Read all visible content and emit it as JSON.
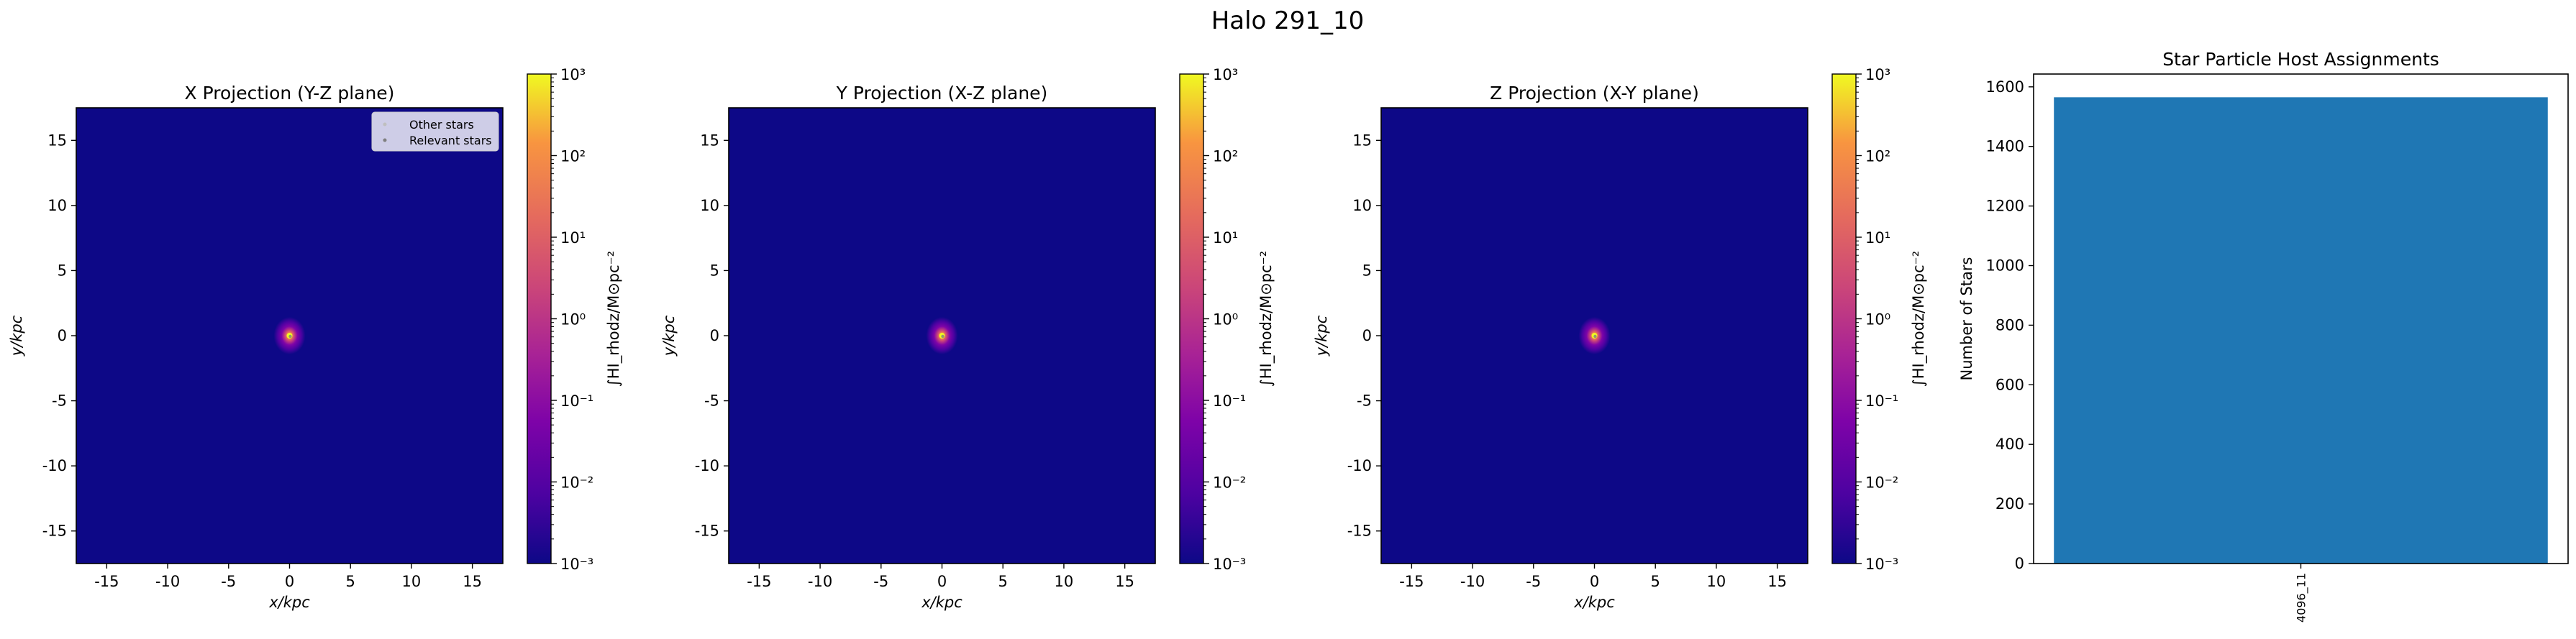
{
  "figure": {
    "suptitle": "Halo 291_10"
  },
  "chart_data": [
    {
      "type": "heatmap",
      "title": "X Projection (Y-Z plane)",
      "xlabel": "x/kpc",
      "ylabel": "y/kpc",
      "xlim": [
        -17.5,
        17.5
      ],
      "ylim": [
        -17.5,
        17.5
      ],
      "xticks": [
        -15,
        -10,
        -5,
        0,
        5,
        10,
        15
      ],
      "yticks": [
        -15,
        -10,
        -5,
        0,
        5,
        10,
        15
      ],
      "colormap": "plasma",
      "colorscale": "log",
      "colorbar": {
        "label": "∫HI_rhodz/M⊙pc⁻²",
        "ticks": [
          {
            "value": 0.001,
            "label": "10⁻³"
          },
          {
            "value": 0.01,
            "label": "10⁻²"
          },
          {
            "value": 0.1,
            "label": "10⁻¹"
          },
          {
            "value": 1.0,
            "label": "10⁰"
          },
          {
            "value": 10.0,
            "label": "10¹"
          },
          {
            "value": 100.0,
            "label": "10²"
          },
          {
            "value": 1000.0,
            "label": "10³"
          }
        ],
        "range": [
          0.001,
          1000.0
        ]
      },
      "legend": {
        "placement": "top-right",
        "entries": [
          {
            "label": "Other stars",
            "color": "#bfbfbf"
          },
          {
            "label": "Relevant stars",
            "color": "#7f7f7f"
          }
        ]
      },
      "concentration": {
        "center": [
          0,
          0
        ],
        "peak": "10³"
      }
    },
    {
      "type": "heatmap",
      "title": "Y Projection (X-Z plane)",
      "xlabel": "x/kpc",
      "ylabel": "y/kpc",
      "xlim": [
        -17.5,
        17.5
      ],
      "ylim": [
        -17.5,
        17.5
      ],
      "xticks": [
        -15,
        -10,
        -5,
        0,
        5,
        10,
        15
      ],
      "yticks": [
        -15,
        -10,
        -5,
        0,
        5,
        10,
        15
      ],
      "colormap": "plasma",
      "colorscale": "log",
      "colorbar": {
        "label": "∫HI_rhodz/M⊙pc⁻²",
        "ticks": [
          {
            "value": 0.001,
            "label": "10⁻³"
          },
          {
            "value": 0.01,
            "label": "10⁻²"
          },
          {
            "value": 0.1,
            "label": "10⁻¹"
          },
          {
            "value": 1.0,
            "label": "10⁰"
          },
          {
            "value": 10.0,
            "label": "10¹"
          },
          {
            "value": 100.0,
            "label": "10²"
          },
          {
            "value": 1000.0,
            "label": "10³"
          }
        ],
        "range": [
          0.001,
          1000.0
        ]
      },
      "concentration": {
        "center": [
          0,
          0
        ],
        "peak": "10³"
      }
    },
    {
      "type": "heatmap",
      "title": "Z Projection (X-Y plane)",
      "xlabel": "x/kpc",
      "ylabel": "y/kpc",
      "xlim": [
        -17.5,
        17.5
      ],
      "ylim": [
        -17.5,
        17.5
      ],
      "xticks": [
        -15,
        -10,
        -5,
        0,
        5,
        10,
        15
      ],
      "yticks": [
        -15,
        -10,
        -5,
        0,
        5,
        10,
        15
      ],
      "colormap": "plasma",
      "colorscale": "log",
      "colorbar": {
        "label": "∫HI_rhodz/M⊙pc⁻²",
        "ticks": [
          {
            "value": 0.001,
            "label": "10⁻³"
          },
          {
            "value": 0.01,
            "label": "10⁻²"
          },
          {
            "value": 0.1,
            "label": "10⁻¹"
          },
          {
            "value": 1.0,
            "label": "10⁰"
          },
          {
            "value": 10.0,
            "label": "10¹"
          },
          {
            "value": 100.0,
            "label": "10²"
          },
          {
            "value": 1000.0,
            "label": "10³"
          }
        ],
        "range": [
          0.001,
          1000.0
        ]
      },
      "concentration": {
        "center": [
          0,
          0
        ],
        "peak": "10³"
      }
    },
    {
      "type": "bar",
      "title": "Star Particle Host Assignments",
      "xlabel": "",
      "ylabel": "Number of Stars",
      "categories": [
        "4096_11"
      ],
      "values": [
        1565
      ],
      "ylim": [
        0,
        1643
      ],
      "yticks": [
        0,
        200,
        400,
        600,
        800,
        1000,
        1200,
        1400,
        1600
      ],
      "bar_color": "#1f77b4",
      "tick_label_rotation": 90
    }
  ]
}
